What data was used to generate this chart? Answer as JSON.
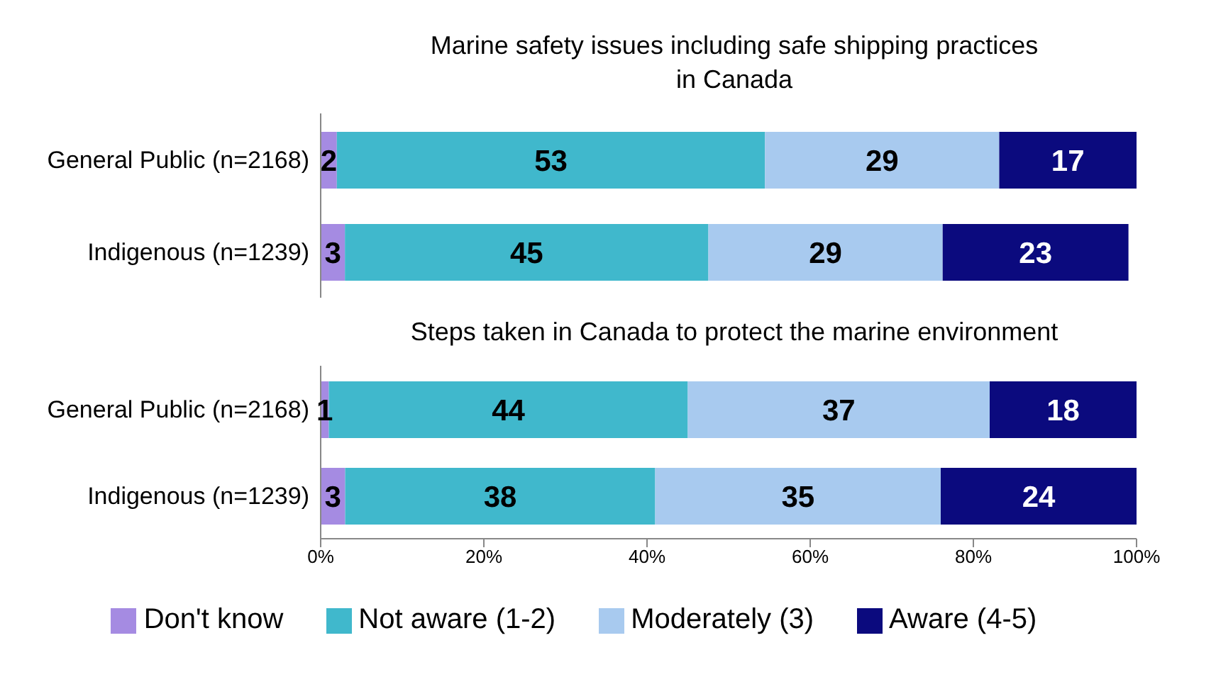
{
  "chart_data": [
    {
      "type": "bar",
      "orientation": "horizontal",
      "stacked": true,
      "title": "Marine safety issues including safe shipping practices in Canada",
      "categories": [
        "General Public (n=2168)",
        "Indigenous (n=1239)"
      ],
      "series": [
        {
          "color": "#a58be2",
          "values": [
            2,
            3
          ]
        },
        {
          "color": "#40b8cc",
          "values": [
            53,
            45
          ]
        },
        {
          "color": "#a8caef",
          "values": [
            29,
            29
          ]
        },
        {
          "color": "#0b0a7e",
          "values": [
            17,
            23
          ]
        }
      ],
      "xlim": [
        0,
        101
      ],
      "tick_labels": "y",
      "data_labels": true,
      "grid": false,
      "legend": false
    },
    {
      "type": "bar",
      "orientation": "horizontal",
      "stacked": true,
      "title": "Steps taken in Canada to protect the marine environment",
      "categories": [
        "General Public (n=2168)",
        "Indigenous (n=1239)"
      ],
      "series": [
        {
          "name": "Don't know",
          "color": "#a58be2",
          "values": [
            1,
            3
          ]
        },
        {
          "name": "Not aware (1-2)",
          "color": "#40b8cc",
          "values": [
            44,
            38
          ]
        },
        {
          "name": "Moderately (3)",
          "color": "#a8caef",
          "values": [
            37,
            35
          ]
        },
        {
          "name": "Aware (4-5)",
          "color": "#0b0a7e",
          "values": [
            18,
            24
          ]
        }
      ],
      "xlim": [
        0,
        100
      ],
      "xticks": [
        {
          "value": 0,
          "label": "0%"
        },
        {
          "value": 20,
          "label": "20%"
        },
        {
          "value": 40,
          "label": "40%"
        },
        {
          "value": 60,
          "label": "60%"
        },
        {
          "value": 80,
          "label": "80%"
        },
        {
          "value": 100,
          "label": "100%"
        }
      ],
      "data_labels": true,
      "grid": false,
      "legend": "bottom"
    }
  ]
}
